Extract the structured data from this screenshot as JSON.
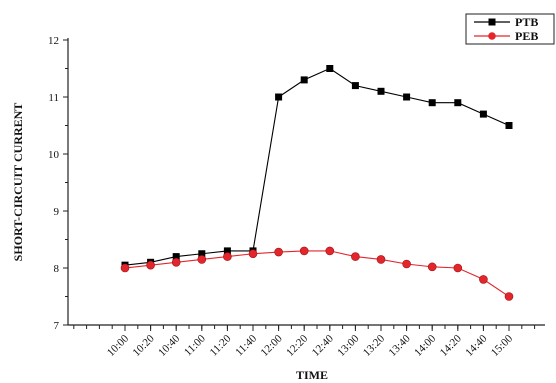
{
  "chart_data": {
    "type": "line",
    "title": "",
    "xlabel": "TIME",
    "ylabel": "SHORT-CIRCUIT CURRENT",
    "categories": [
      "10:00",
      "10:20",
      "10:40",
      "11:00",
      "11:20",
      "11:40",
      "12:00",
      "12:20",
      "12:40",
      "13:00",
      "13:20",
      "13:40",
      "14:00",
      "14:20",
      "14:40",
      "15:00"
    ],
    "ylim": [
      7,
      12
    ],
    "yticks": [
      7,
      8,
      9,
      10,
      11,
      12
    ],
    "grid": false,
    "legend_position": "top-right",
    "series": [
      {
        "name": "PTB",
        "color": "#000000",
        "marker": "square",
        "values": [
          8.05,
          8.1,
          8.2,
          8.25,
          8.3,
          8.3,
          11.0,
          11.3,
          11.5,
          11.2,
          11.1,
          11.0,
          10.9,
          10.9,
          10.7,
          10.5
        ]
      },
      {
        "name": "PEB",
        "color": "#e3262b",
        "marker": "circle",
        "values": [
          8.0,
          8.05,
          8.1,
          8.15,
          8.2,
          8.25,
          8.28,
          8.3,
          8.3,
          8.2,
          8.15,
          8.07,
          8.02,
          8.0,
          7.8,
          7.5
        ]
      }
    ]
  }
}
